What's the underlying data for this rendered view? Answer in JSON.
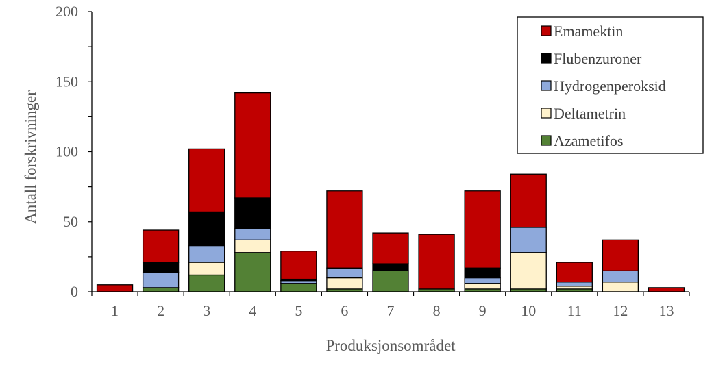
{
  "chart_data": {
    "type": "bar",
    "stacked": true,
    "xlabel": "Produksjonsområdet",
    "ylabel": "Antall forskrivninger",
    "ylim": [
      0,
      200
    ],
    "yticks": [
      0,
      50,
      100,
      150,
      200
    ],
    "categories": [
      "1",
      "2",
      "3",
      "4",
      "5",
      "6",
      "7",
      "8",
      "9",
      "10",
      "11",
      "12",
      "13"
    ],
    "legend_position": "top-right",
    "series": [
      {
        "name": "Azametifos",
        "color": "#538135",
        "values": [
          0,
          3,
          12,
          28,
          6,
          2,
          15,
          2,
          2,
          2,
          2,
          0,
          0
        ]
      },
      {
        "name": "Deltametrin",
        "color": "#FFF2CC",
        "values": [
          0,
          0,
          9,
          9,
          0,
          8,
          0,
          0,
          4,
          26,
          2,
          7,
          0
        ]
      },
      {
        "name": "Hydrogenperoksid",
        "color": "#8EA9DB",
        "values": [
          0,
          11,
          12,
          8,
          2,
          7,
          0,
          0,
          4,
          18,
          3,
          8,
          0
        ]
      },
      {
        "name": "Flubenzuroner",
        "color": "#000000",
        "values": [
          0,
          7,
          24,
          22,
          1,
          0,
          5,
          0,
          7,
          0,
          0,
          0,
          0
        ]
      },
      {
        "name": "Emamektin",
        "color": "#C00000",
        "values": [
          5,
          23,
          45,
          75,
          20,
          55,
          22,
          39,
          55,
          38,
          14,
          22,
          3
        ]
      }
    ]
  }
}
